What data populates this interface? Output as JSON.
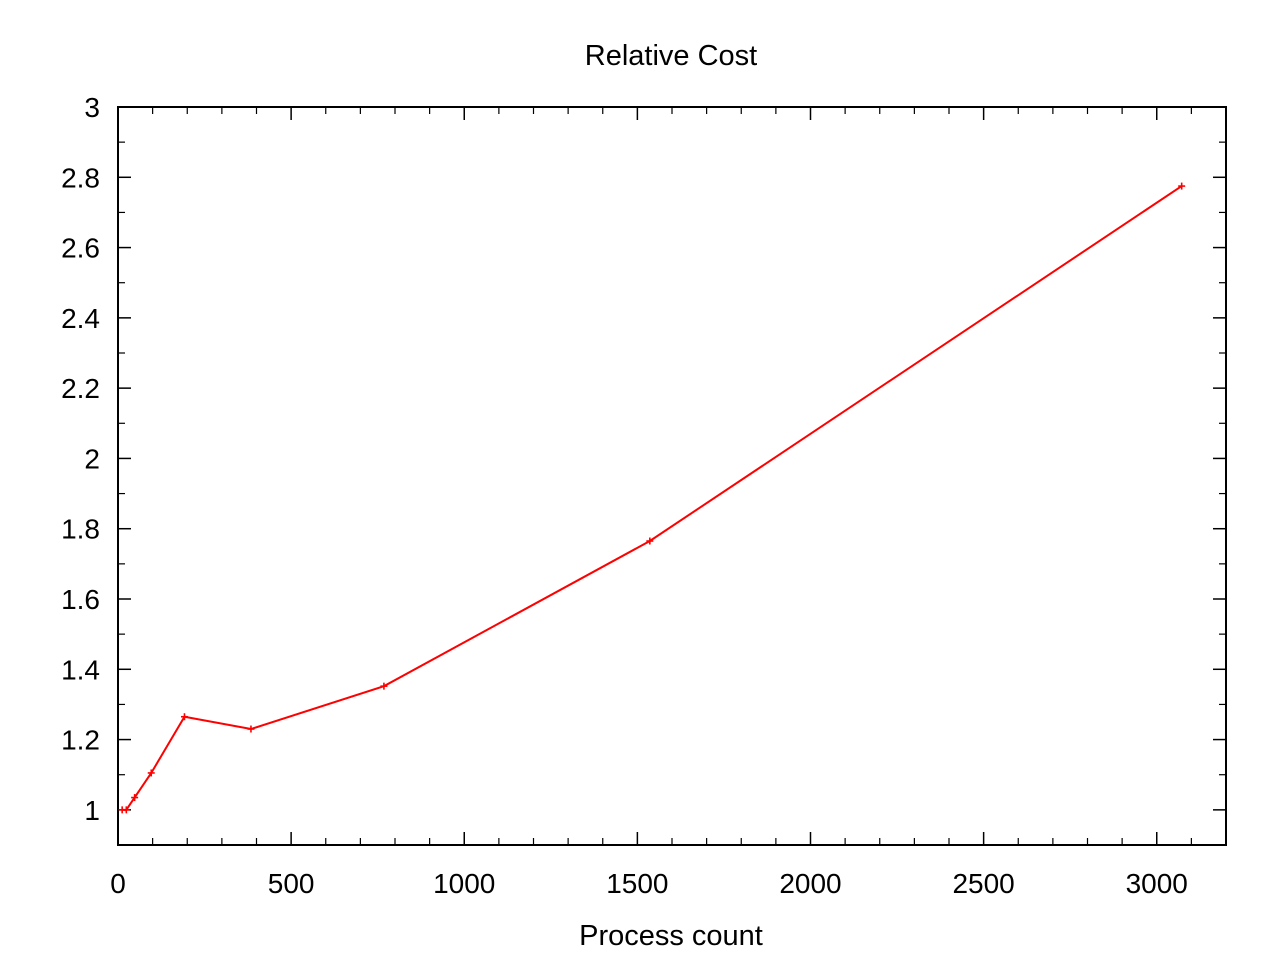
{
  "chart_data": {
    "type": "line",
    "title": "Relative Cost",
    "xlabel": "Process count",
    "ylabel": "",
    "xlim": [
      0,
      3200
    ],
    "ylim": [
      0.9,
      3.0
    ],
    "x_ticks": [
      0,
      500,
      1000,
      1500,
      2000,
      2500,
      3000
    ],
    "x_tick_labels": [
      "0",
      "500",
      "1000",
      "1500",
      "2000",
      "2500",
      "3000"
    ],
    "y_ticks": [
      1,
      1.2,
      1.4,
      1.6,
      1.8,
      2,
      2.2,
      2.4,
      2.6,
      2.8,
      3
    ],
    "y_tick_labels": [
      "1",
      "1.2",
      "1.4",
      "1.6",
      "1.8",
      "2",
      "2.2",
      "2.4",
      "2.6",
      "2.8",
      "3"
    ],
    "grid": false,
    "legend": "none",
    "line_color": "#ff0000",
    "series": [
      {
        "x": [
          12,
          24,
          48,
          96,
          192,
          384,
          768,
          1536,
          3072
        ],
        "y": [
          1.0,
          1.0,
          1.035,
          1.105,
          1.265,
          1.23,
          1.352,
          1.765,
          2.775
        ]
      }
    ]
  }
}
